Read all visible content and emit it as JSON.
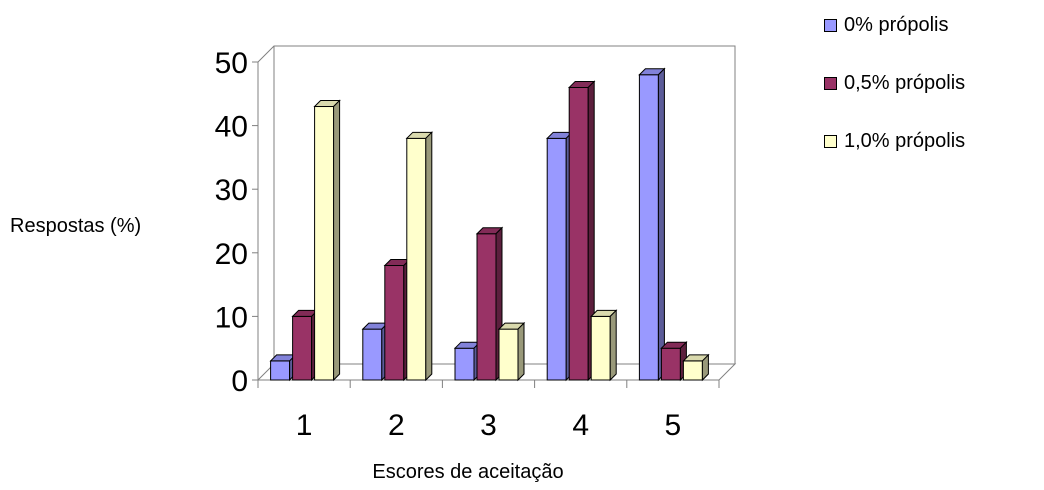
{
  "chart_data": {
    "type": "bar",
    "categories": [
      "1",
      "2",
      "3",
      "4",
      "5"
    ],
    "series": [
      {
        "name": "0% própolis",
        "values": [
          3,
          8,
          5,
          38,
          48
        ],
        "color": "#9999ff"
      },
      {
        "name": "0,5% própolis",
        "values": [
          10,
          18,
          23,
          46,
          5
        ],
        "color": "#993366"
      },
      {
        "name": "1,0% própolis",
        "values": [
          43,
          38,
          8,
          10,
          3
        ],
        "color": "#ffffcc"
      }
    ],
    "xlabel": "Escores de aceitação",
    "ylabel": "Respostas (%)",
    "ylim": [
      0,
      50
    ],
    "yticks": [
      "0",
      "10",
      "20",
      "30",
      "40",
      "50"
    ],
    "grid": false,
    "legend_position": "top-right",
    "style": "3d-clustered-column"
  }
}
